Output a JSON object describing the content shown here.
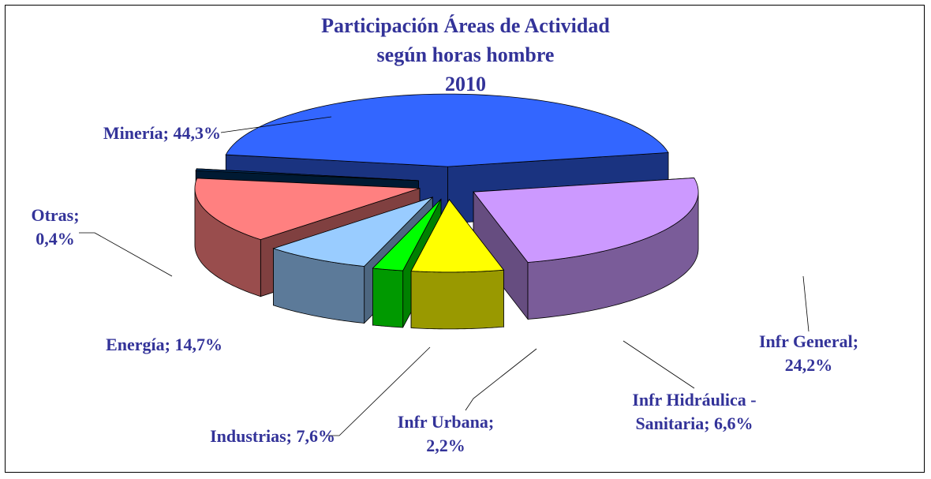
{
  "chart_data": {
    "type": "pie3d",
    "title": "Participación Áreas de Actividad\nsegún horas hombre\n2010",
    "values": [
      44.3,
      24.2,
      6.6,
      2.2,
      7.6,
      14.7,
      0.4
    ],
    "value_labels": [
      "Minería; 44,3%",
      "Infr General;\n24,2%",
      "Infr Hidráulica -\nSanitaria; 6,6%",
      "Infr Urbana;\n2,2%",
      "Industrias; 7,6%",
      "Energía; 14,7%",
      "Otras;\n0,4%"
    ],
    "colors": [
      "#3366ff",
      "#cc99ff",
      "#ffff00",
      "#00ff00",
      "#99ccff",
      "#ff8080",
      "#003366"
    ]
  }
}
